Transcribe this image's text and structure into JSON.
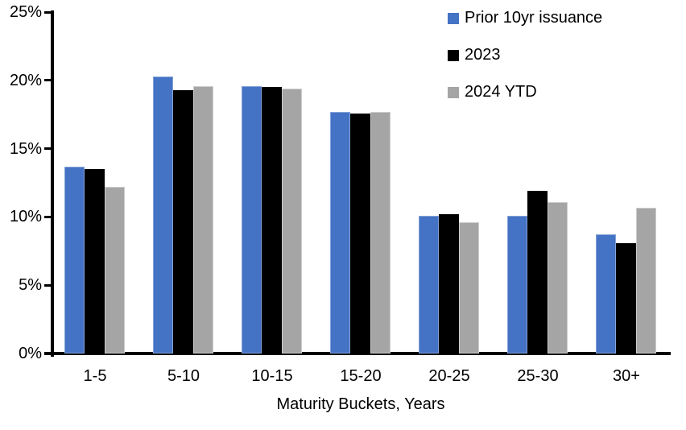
{
  "chart_data": {
    "type": "bar",
    "title": "",
    "xlabel": "Maturity Buckets, Years",
    "ylabel": "",
    "ylim": [
      0,
      25
    ],
    "grid": false,
    "legend_position": "top-right",
    "categories": [
      "1-5",
      "5-10",
      "10-15",
      "15-20",
      "20-25",
      "25-30",
      "30+"
    ],
    "yticks": [
      {
        "value": 0,
        "label": "0%"
      },
      {
        "value": 5,
        "label": "5%"
      },
      {
        "value": 10,
        "label": "10%"
      },
      {
        "value": 15,
        "label": "15%"
      },
      {
        "value": 20,
        "label": "20%"
      },
      {
        "value": 25,
        "label": "25%"
      }
    ],
    "series": [
      {
        "name": "Prior 10yr issuance",
        "color": "#4472C4",
        "values": [
          13.7,
          20.3,
          19.6,
          17.7,
          10.1,
          10.1,
          8.7
        ]
      },
      {
        "name": "2023",
        "color": "#000000",
        "values": [
          13.5,
          19.3,
          19.5,
          17.6,
          10.2,
          11.9,
          8.1
        ]
      },
      {
        "name": "2024 YTD",
        "color": "#A5A5A5",
        "values": [
          12.2,
          19.6,
          19.4,
          17.7,
          9.6,
          11.1,
          10.7
        ]
      }
    ]
  }
}
